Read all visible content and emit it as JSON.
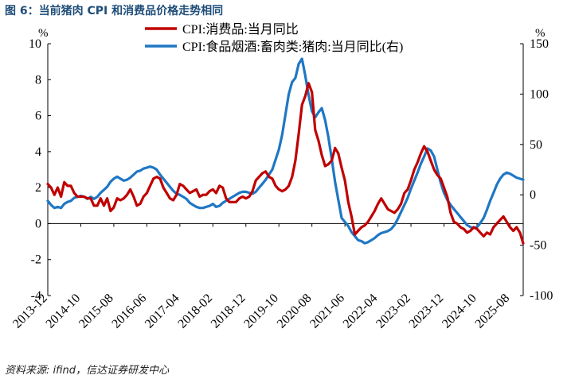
{
  "figure": {
    "title": "图 6：当前猪肉 CPI 和消费品价格走势相同",
    "source": "资料来源: ifind，信达证券研发中心"
  },
  "chart_data": {
    "type": "line",
    "title": "图 6：当前猪肉 CPI 和消费品价格走势相同",
    "left_axis": {
      "unit_label": "%",
      "ylim": [
        -4,
        10
      ],
      "ticks": [
        "10",
        "8",
        "6",
        "4",
        "2",
        "0",
        "-2",
        "-4"
      ],
      "tick_values": [
        10,
        8,
        6,
        4,
        2,
        0,
        -2,
        -4
      ]
    },
    "right_axis": {
      "unit_label": "%",
      "ylim": [
        -100,
        150
      ],
      "ticks": [
        "150",
        "100",
        "50",
        "0",
        "-50",
        "-100"
      ],
      "tick_values": [
        150,
        100,
        50,
        0,
        -50,
        -100
      ]
    },
    "x_range": [
      "2013-12",
      "2025-09"
    ],
    "x_tick_labels": [
      "2013-12",
      "2014-10",
      "2015-08",
      "2016-06",
      "2017-04",
      "2018-02",
      "2018-12",
      "2019-10",
      "2020-08",
      "2021-06",
      "2022-04",
      "2023-02",
      "2023-12",
      "2024-10",
      "2025-08"
    ],
    "x_tick_indices": [
      0,
      10,
      20,
      30,
      40,
      50,
      60,
      70,
      80,
      90,
      100,
      110,
      120,
      130,
      140
    ],
    "legend": {
      "placement": "top-center"
    },
    "series": [
      {
        "name": "CPI:消费品:当月同比",
        "axis": "left",
        "color": "#c00000",
        "values": [
          2.2,
          2.0,
          1.6,
          2.0,
          1.5,
          2.3,
          2.1,
          2.1,
          1.7,
          1.5,
          1.5,
          1.5,
          1.4,
          1.4,
          1.0,
          1.0,
          1.4,
          1.0,
          1.4,
          0.7,
          0.9,
          1.4,
          1.3,
          1.4,
          1.6,
          1.9,
          1.5,
          1.0,
          1.1,
          1.5,
          1.7,
          2.1,
          2.5,
          2.6,
          2.5,
          2.0,
          1.7,
          1.4,
          1.3,
          1.6,
          2.2,
          2.1,
          1.9,
          1.7,
          1.8,
          1.9,
          1.5,
          1.6,
          1.6,
          1.8,
          1.9,
          1.7,
          2.1,
          2.0,
          1.4,
          1.2,
          1.2,
          1.2,
          1.4,
          1.5,
          1.4,
          1.5,
          1.8,
          2.4,
          2.6,
          2.8,
          2.9,
          2.6,
          2.5,
          2.1,
          1.9,
          1.8,
          1.9,
          2.1,
          2.6,
          3.5,
          5.0,
          6.6,
          7.1,
          7.8,
          7.3,
          5.2,
          4.6,
          3.8,
          3.2,
          3.3,
          3.5,
          4.2,
          3.9,
          3.1,
          2.4,
          1.2,
          0.4,
          -0.6,
          -0.4,
          -0.2,
          -0.1,
          0.1,
          0.4,
          0.7,
          1.1,
          1.4,
          1.1,
          0.8,
          0.7,
          0.6,
          0.8,
          1.1,
          1.7,
          1.9,
          2.4,
          3.0,
          3.4,
          3.9,
          4.3,
          4.0,
          3.5,
          3.0,
          2.7,
          2.5,
          2.0,
          1.5,
          0.6,
          0.1,
          0.0,
          -0.2,
          -0.3,
          -0.5,
          -0.4,
          -0.2,
          -0.3,
          -0.5,
          -0.7,
          -0.5,
          -0.6,
          -0.2,
          0.0,
          0.2,
          0.4,
          0.1,
          -0.2,
          -0.4,
          -0.2,
          -0.5,
          -1.1
        ]
      },
      {
        "name": "CPI:食品烟酒:畜肉类:猪肉:当月同比(右)",
        "axis": "right",
        "color": "#1f77c4",
        "values": [
          -6,
          -10,
          -13,
          -12,
          -13,
          -9,
          -7,
          -6,
          -3,
          -2,
          -1,
          -2,
          -4,
          -2,
          -4,
          -2,
          2,
          5,
          8,
          13,
          16,
          18,
          16,
          14,
          15,
          17,
          20,
          23,
          24,
          26,
          27,
          28,
          27,
          25,
          20,
          16,
          12,
          8,
          4,
          1,
          0,
          -2,
          -4,
          -8,
          -10,
          -12,
          -13,
          -13,
          -12,
          -11,
          -9,
          -12,
          -11,
          -8,
          -6,
          -4,
          -2,
          0,
          2,
          3,
          3,
          2,
          1,
          3,
          7,
          11,
          15,
          20,
          25,
          35,
          45,
          60,
          80,
          100,
          112,
          116,
          130,
          135,
          118,
          99,
          83,
          77,
          82,
          86,
          74,
          57,
          36,
          13,
          -5,
          -23,
          -27,
          -31,
          -37,
          -41,
          -45,
          -46,
          -48,
          -47,
          -45,
          -43,
          -40,
          -38,
          -37,
          -36,
          -34,
          -30,
          -24,
          -17,
          -10,
          -3,
          6,
          14,
          22,
          31,
          38,
          46,
          44,
          38,
          25,
          12,
          2,
          -5,
          -10,
          -14,
          -18,
          -22,
          -26,
          -30,
          -32,
          -33,
          -32,
          -28,
          -23,
          -15,
          -6,
          2,
          10,
          16,
          20,
          22,
          21,
          19,
          17,
          16,
          15
        ]
      }
    ]
  }
}
